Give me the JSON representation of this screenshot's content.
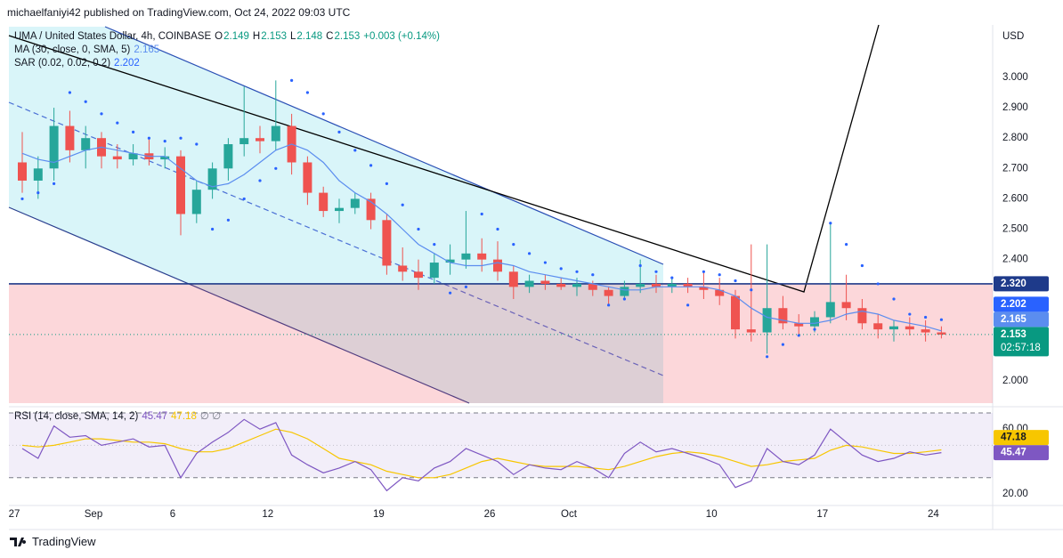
{
  "header": {
    "publisher": "michaelfaniyi42 published on TradingView.com, Oct 24, 2022 09:03 UTC"
  },
  "footer": {
    "brand": "TradingView"
  },
  "chart_data": [
    {
      "type": "candlestick",
      "title": "UMA / United States Dollar, 4h, COINBASE",
      "ohlc_legend": [
        {
          "label": "O",
          "value": 2.149
        },
        {
          "label": "H",
          "value": 2.153
        },
        {
          "label": "L",
          "value": 2.148
        },
        {
          "label": "C",
          "value": 2.153
        }
      ],
      "change": "+0.003 (+0.14%)",
      "currency": "USD",
      "countdown": "02:57:18",
      "up_color": "#26a69a",
      "down_color": "#ef5350",
      "categories": [
        "27",
        null,
        null,
        null,
        null,
        "Sep",
        null,
        null,
        null,
        null,
        "6",
        null,
        null,
        null,
        null,
        null,
        "12",
        null,
        null,
        null,
        null,
        null,
        null,
        "19",
        null,
        null,
        null,
        null,
        null,
        null,
        "26",
        null,
        null,
        null,
        null,
        "Oct",
        null,
        null,
        null,
        null,
        null,
        null,
        null,
        null,
        "10",
        null,
        null,
        null,
        null,
        null,
        null,
        "17",
        null,
        null,
        null,
        null,
        null,
        null,
        "24"
      ],
      "open": [
        2.72,
        2.66,
        2.7,
        2.84,
        2.76,
        2.8,
        2.74,
        2.73,
        2.75,
        2.73,
        2.74,
        2.55,
        2.63,
        2.7,
        2.78,
        2.8,
        2.79,
        2.84,
        2.72,
        2.62,
        2.56,
        2.57,
        2.6,
        2.53,
        2.38,
        2.36,
        2.34,
        2.39,
        2.4,
        2.42,
        2.4,
        2.36,
        2.31,
        2.33,
        2.32,
        2.31,
        2.32,
        2.3,
        2.28,
        2.31,
        2.32,
        2.31,
        2.32,
        2.31,
        2.3,
        2.28,
        2.17,
        2.16,
        2.24,
        2.19,
        2.18,
        2.21,
        2.26,
        2.24,
        2.19,
        2.17,
        2.18,
        2.17,
        2.16
      ],
      "high": [
        2.82,
        2.74,
        2.9,
        2.89,
        2.84,
        2.82,
        2.78,
        2.78,
        2.8,
        2.77,
        2.76,
        2.66,
        2.72,
        2.8,
        2.97,
        2.84,
        2.99,
        2.88,
        2.74,
        2.64,
        2.6,
        2.62,
        2.62,
        2.55,
        2.44,
        2.4,
        2.42,
        2.45,
        2.56,
        2.47,
        2.46,
        2.38,
        2.35,
        2.35,
        2.34,
        2.34,
        2.33,
        2.31,
        2.33,
        2.4,
        2.35,
        2.34,
        2.34,
        2.36,
        2.34,
        2.3,
        2.45,
        2.45,
        2.28,
        2.22,
        2.23,
        2.52,
        2.35,
        2.27,
        2.22,
        2.2,
        2.21,
        2.2,
        2.18
      ],
      "low": [
        2.62,
        2.6,
        2.66,
        2.72,
        2.7,
        2.7,
        2.7,
        2.71,
        2.71,
        2.7,
        2.48,
        2.52,
        2.6,
        2.66,
        2.74,
        2.75,
        2.76,
        2.68,
        2.58,
        2.54,
        2.52,
        2.55,
        2.5,
        2.35,
        2.33,
        2.3,
        2.32,
        2.35,
        2.37,
        2.36,
        2.33,
        2.27,
        2.29,
        2.3,
        2.3,
        2.28,
        2.28,
        2.25,
        2.27,
        2.29,
        2.29,
        2.29,
        2.29,
        2.27,
        2.25,
        2.14,
        2.13,
        2.09,
        2.17,
        2.15,
        2.16,
        2.19,
        2.2,
        2.17,
        2.14,
        2.13,
        2.15,
        2.13,
        2.14
      ],
      "close": [
        2.66,
        2.7,
        2.84,
        2.76,
        2.8,
        2.74,
        2.73,
        2.75,
        2.73,
        2.74,
        2.55,
        2.63,
        2.7,
        2.78,
        2.8,
        2.79,
        2.84,
        2.72,
        2.62,
        2.56,
        2.57,
        2.6,
        2.53,
        2.38,
        2.36,
        2.34,
        2.39,
        2.4,
        2.42,
        2.4,
        2.36,
        2.31,
        2.33,
        2.32,
        2.31,
        2.32,
        2.3,
        2.28,
        2.31,
        2.32,
        2.31,
        2.32,
        2.31,
        2.3,
        2.28,
        2.17,
        2.16,
        2.24,
        2.19,
        2.18,
        2.21,
        2.26,
        2.24,
        2.19,
        2.17,
        2.18,
        2.17,
        2.16,
        2.153
      ],
      "series": [
        {
          "name": "MA (30, close, 0, SMA, 5)",
          "style": "line",
          "color": "#5b8def",
          "values": [
            2.75,
            2.73,
            2.72,
            2.74,
            2.76,
            2.77,
            2.76,
            2.75,
            2.74,
            2.74,
            2.7,
            2.66,
            2.64,
            2.65,
            2.68,
            2.72,
            2.76,
            2.78,
            2.76,
            2.72,
            2.66,
            2.62,
            2.59,
            2.55,
            2.5,
            2.45,
            2.42,
            2.39,
            2.38,
            2.38,
            2.39,
            2.38,
            2.36,
            2.35,
            2.34,
            2.33,
            2.32,
            2.31,
            2.3,
            2.3,
            2.31,
            2.31,
            2.31,
            2.31,
            2.3,
            2.28,
            2.24,
            2.21,
            2.2,
            2.19,
            2.19,
            2.2,
            2.22,
            2.23,
            2.22,
            2.2,
            2.19,
            2.18,
            2.165
          ]
        },
        {
          "name": "SAR (0.02, 0.02, 0.2)",
          "style": "dots",
          "color": "#2962ff",
          "values": [
            2.6,
            2.62,
            2.65,
            2.95,
            2.92,
            2.88,
            2.85,
            2.82,
            2.8,
            2.79,
            2.8,
            2.78,
            2.5,
            2.53,
            2.6,
            2.66,
            2.7,
            2.99,
            2.95,
            2.88,
            2.82,
            2.76,
            2.71,
            2.65,
            2.58,
            2.5,
            2.45,
            2.29,
            2.31,
            2.55,
            2.5,
            2.45,
            2.42,
            2.39,
            2.37,
            2.36,
            2.35,
            2.25,
            2.27,
            2.38,
            2.36,
            2.34,
            2.25,
            2.36,
            2.35,
            2.33,
            2.3,
            2.08,
            2.12,
            2.15,
            2.17,
            2.52,
            2.45,
            2.38,
            2.32,
            2.27,
            2.22,
            2.21,
            2.202
          ]
        }
      ],
      "horizontal_line": {
        "value": 2.32,
        "label": "2.320",
        "color": "#1e3a8a"
      },
      "ylim": [
        1.927,
        3.167
      ],
      "yticks": [
        {
          "value": 2.0,
          "label": "2.000"
        },
        {
          "value": 2.4,
          "label": "2.400"
        },
        {
          "value": 2.5,
          "label": "2.500"
        },
        {
          "value": 2.6,
          "label": "2.600"
        },
        {
          "value": 2.7,
          "label": "2.700"
        },
        {
          "value": 2.8,
          "label": "2.800"
        },
        {
          "value": 2.9,
          "label": "2.900"
        },
        {
          "value": 3.0,
          "label": "3.000"
        }
      ],
      "grid": false
    },
    {
      "type": "line",
      "title": "RSI (14, close, SMA, 14, 2)",
      "na_text": "∅ ∅",
      "series": [
        {
          "color": "#7e57c2",
          "values": [
            48,
            42,
            62,
            55,
            56,
            50,
            52,
            54,
            49,
            50,
            30,
            45,
            52,
            58,
            66,
            60,
            64,
            44,
            38,
            33,
            36,
            40,
            35,
            22,
            30,
            28,
            36,
            40,
            48,
            44,
            40,
            32,
            38,
            36,
            35,
            40,
            36,
            30,
            45,
            52,
            46,
            48,
            45,
            42,
            38,
            24,
            28,
            48,
            40,
            38,
            44,
            60,
            52,
            44,
            40,
            42,
            46,
            44,
            45.47
          ]
        },
        {
          "color": "#f7c600",
          "values": [
            50,
            49,
            50,
            52,
            54,
            54,
            53,
            52,
            52,
            51,
            48,
            46,
            46,
            48,
            52,
            56,
            60,
            58,
            54,
            48,
            42,
            40,
            38,
            34,
            32,
            30,
            30,
            32,
            36,
            40,
            42,
            40,
            38,
            37,
            37,
            37,
            36,
            35,
            37,
            40,
            43,
            45,
            46,
            45,
            43,
            40,
            37,
            38,
            40,
            41,
            42,
            47,
            50,
            49,
            47,
            45,
            45,
            46,
            47.18
          ]
        }
      ],
      "bands": [
        30,
        50,
        70
      ],
      "ylim": [
        14.5,
        71.1
      ],
      "yticks": [
        {
          "value": 20,
          "label": "20.00"
        },
        {
          "value": 60,
          "label": "60.00"
        }
      ],
      "grid": false
    }
  ]
}
